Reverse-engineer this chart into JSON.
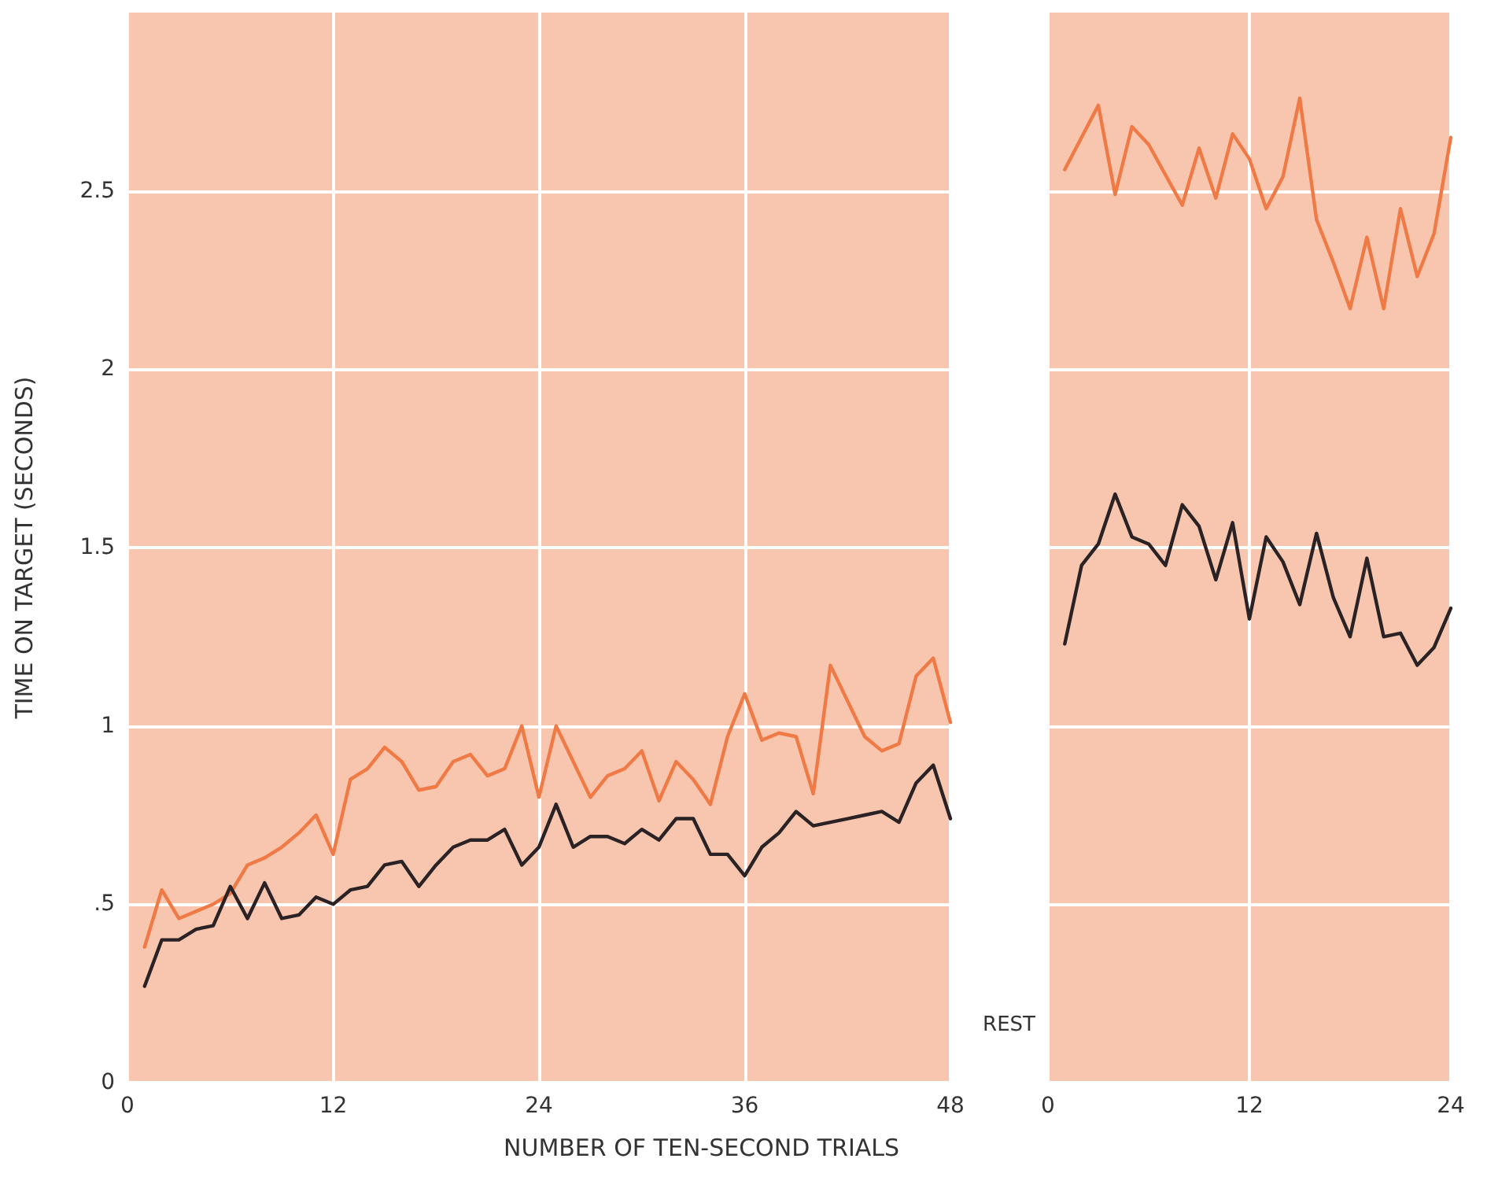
{
  "chart_data": [
    {
      "type": "line",
      "xlabel": "NUMBER OF TEN-SECOND TRIALS",
      "ylabel": "TIME ON TARGET (SECONDS)",
      "xlim": [
        0,
        48
      ],
      "xticks": [
        0,
        12,
        24,
        36,
        48
      ],
      "ylim": [
        0,
        3
      ],
      "yticks": [
        0,
        {
          "value": 0.5,
          "label": ".5"
        },
        1,
        1.5,
        2,
        2.5
      ],
      "grid": true,
      "marker": "none",
      "line_style": "solid",
      "x": [
        1,
        2,
        3,
        4,
        5,
        6,
        7,
        8,
        9,
        10,
        11,
        12,
        13,
        14,
        15,
        16,
        17,
        18,
        19,
        20,
        21,
        22,
        23,
        24,
        25,
        26,
        27,
        28,
        29,
        30,
        31,
        32,
        33,
        34,
        35,
        36,
        37,
        38,
        39,
        40,
        41,
        42,
        43,
        44,
        45,
        46,
        47,
        48
      ],
      "series": [
        {
          "color": "#f07a45",
          "values": [
            0.38,
            0.54,
            0.46,
            0.48,
            0.5,
            0.53,
            0.61,
            0.63,
            0.66,
            0.7,
            0.75,
            0.64,
            0.85,
            0.88,
            0.94,
            0.9,
            0.82,
            0.83,
            0.9,
            0.92,
            0.86,
            0.88,
            1.0,
            0.8,
            1.0,
            0.9,
            0.8,
            0.86,
            0.88,
            0.93,
            0.79,
            0.9,
            0.85,
            0.78,
            0.97,
            1.09,
            0.96,
            0.98,
            0.97,
            0.81,
            1.17,
            1.07,
            0.97,
            0.93,
            0.95,
            1.14,
            1.19,
            1.01
          ]
        },
        {
          "color": "#2a2224",
          "values": [
            0.27,
            0.4,
            0.4,
            0.43,
            0.44,
            0.55,
            0.46,
            0.56,
            0.46,
            0.47,
            0.52,
            0.5,
            0.54,
            0.55,
            0.61,
            0.62,
            0.55,
            0.61,
            0.66,
            0.68,
            0.68,
            0.71,
            0.61,
            0.66,
            0.78,
            0.66,
            0.69,
            0.69,
            0.67,
            0.71,
            0.68,
            0.74,
            0.74,
            0.64,
            0.64,
            0.58,
            0.66,
            0.7,
            0.76,
            0.72,
            0.73,
            0.74,
            0.75,
            0.76,
            0.73,
            0.84,
            0.89,
            0.74
          ]
        }
      ]
    },
    {
      "type": "line",
      "annotations": [
        "REST"
      ],
      "xlim": [
        0,
        24
      ],
      "xticks": [
        0,
        12,
        24
      ],
      "ylim": [
        0,
        3
      ],
      "yticks": [
        0,
        0.5,
        1,
        1.5,
        2,
        2.5
      ],
      "tick_labels": "x",
      "grid": true,
      "marker": "none",
      "line_style": "solid",
      "series": [
        {
          "color": "#f07a45",
          "x": [
            1,
            3,
            4,
            5,
            6,
            8,
            9,
            10,
            11,
            12,
            13,
            14,
            15,
            16,
            17,
            18,
            19,
            20,
            21,
            22,
            23,
            24
          ],
          "values": [
            2.56,
            2.74,
            2.49,
            2.68,
            2.63,
            2.46,
            2.62,
            2.48,
            2.66,
            2.59,
            2.45,
            2.54,
            2.76,
            2.42,
            2.3,
            2.17,
            2.37,
            2.17,
            2.45,
            2.26,
            2.38,
            2.65
          ]
        },
        {
          "color": "#2a2224",
          "x": [
            1,
            2,
            3,
            4,
            5,
            6,
            7,
            8,
            9,
            10,
            11,
            12,
            13,
            14,
            15,
            16,
            17,
            18,
            19,
            20,
            21,
            22,
            23,
            24
          ],
          "values": [
            1.23,
            1.45,
            1.51,
            1.65,
            1.53,
            1.51,
            1.45,
            1.62,
            1.56,
            1.41,
            1.57,
            1.3,
            1.53,
            1.46,
            1.34,
            1.54,
            1.36,
            1.25,
            1.47,
            1.25,
            1.26,
            1.17,
            1.22,
            1.33
          ]
        }
      ]
    }
  ]
}
